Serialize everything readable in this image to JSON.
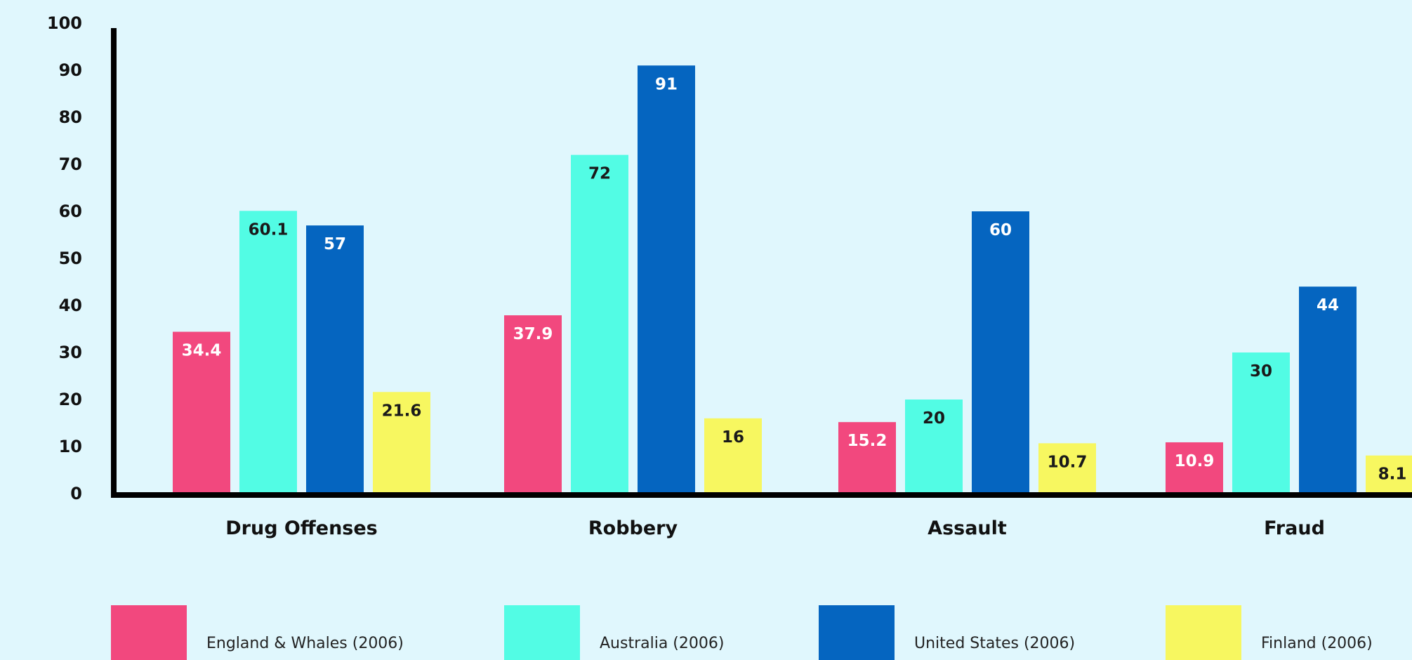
{
  "chart_data": {
    "type": "bar",
    "title": "",
    "xlabel": "",
    "ylabel": "",
    "ylim": [
      0,
      100
    ],
    "yticks": [
      0,
      10,
      20,
      30,
      40,
      50,
      60,
      70,
      80,
      90,
      100
    ],
    "categories": [
      "Drug Offenses",
      "Robbery",
      "Assault",
      "Fraud"
    ],
    "series": [
      {
        "name": "England & Whales (2006)",
        "color": "#f2487e",
        "label_color": "#ffffff",
        "values": [
          34.4,
          37.9,
          15.2,
          10.9
        ]
      },
      {
        "name": "Australia (2006)",
        "color": "#52fce4",
        "label_color": "#1a1a1a",
        "values": [
          60.1,
          72,
          20,
          30
        ]
      },
      {
        "name": "United States (2006)",
        "color": "#0565c0",
        "label_color": "#ffffff",
        "values": [
          57,
          91,
          60,
          44
        ]
      },
      {
        "name": "Finland (2006)",
        "color": "#f7f760",
        "label_color": "#1a1a1a",
        "values": [
          21.6,
          16,
          10.7,
          8.1
        ]
      }
    ],
    "legend_position": "bottom",
    "grid": false
  }
}
